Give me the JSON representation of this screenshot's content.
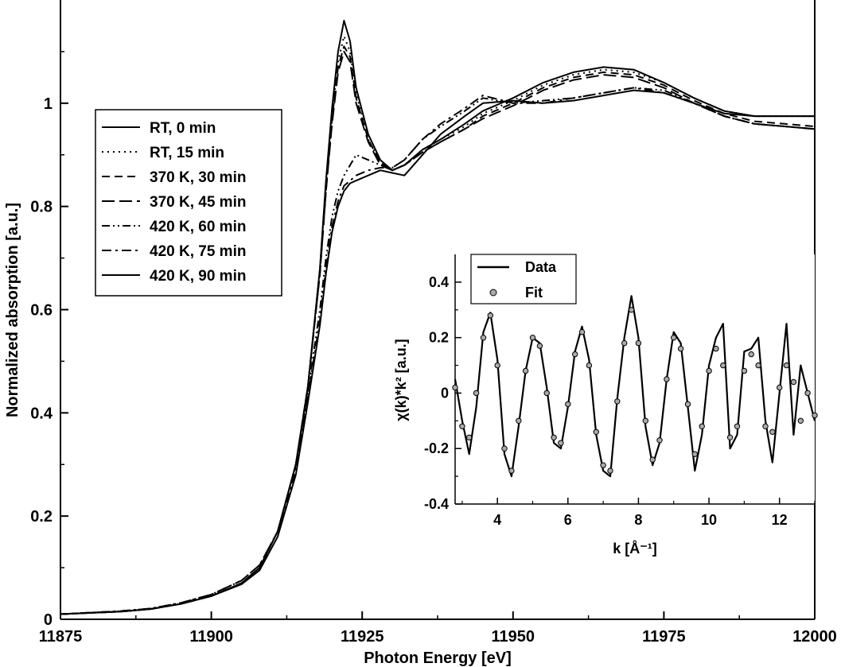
{
  "chart_data": [
    {
      "type": "line",
      "xlabel": "Photon Energy [eV]",
      "ylabel": "Normalized absorption [a.u.]",
      "xlim": [
        11875,
        12000
      ],
      "ylim": [
        0,
        1.2
      ],
      "x_ticks": [
        "11875",
        "11900",
        "11925",
        "11950",
        "11975",
        "12000"
      ],
      "y_ticks": [
        "0",
        "0.2",
        "0.4",
        "0.6",
        "0.8",
        "1"
      ],
      "grid": false,
      "legend_position": "upper-left",
      "series": [
        {
          "name": "RT, 0 min",
          "dash": "solid",
          "x": [
            11875,
            11885,
            11890,
            11895,
            11900,
            11905,
            11908,
            11911,
            11914,
            11916,
            11918,
            11919,
            11920,
            11921,
            11922,
            11923,
            11924,
            11926,
            11928,
            11930,
            11932,
            11935,
            11938,
            11942,
            11945,
            11950,
            11955,
            11960,
            11965,
            11970,
            11975,
            11980,
            11985,
            11990,
            11995,
            12000
          ],
          "y": [
            0.01,
            0.015,
            0.02,
            0.03,
            0.045,
            0.07,
            0.1,
            0.17,
            0.3,
            0.45,
            0.68,
            0.85,
            0.99,
            1.1,
            1.16,
            1.12,
            1.03,
            0.94,
            0.89,
            0.87,
            0.88,
            0.91,
            0.93,
            0.96,
            0.985,
            1.01,
            1.04,
            1.06,
            1.07,
            1.065,
            1.04,
            1.01,
            0.985,
            0.975,
            0.975,
            0.975
          ]
        },
        {
          "name": "RT, 15 min",
          "dash": "dotted",
          "x": [
            11875,
            11885,
            11890,
            11895,
            11900,
            11905,
            11908,
            11911,
            11914,
            11916,
            11918,
            11919,
            11920,
            11921,
            11922,
            11923,
            11924,
            11926,
            11928,
            11930,
            11932,
            11935,
            11938,
            11942,
            11945,
            11950,
            11955,
            11960,
            11965,
            11970,
            11975,
            11980,
            11985,
            11990,
            11995,
            12000
          ],
          "y": [
            0.01,
            0.015,
            0.02,
            0.03,
            0.045,
            0.07,
            0.1,
            0.17,
            0.3,
            0.45,
            0.68,
            0.84,
            0.98,
            1.08,
            1.13,
            1.1,
            1.02,
            0.93,
            0.885,
            0.87,
            0.88,
            0.91,
            0.93,
            0.955,
            0.98,
            1.005,
            1.035,
            1.055,
            1.065,
            1.06,
            1.04,
            1.01,
            0.985,
            0.975,
            0.975,
            0.975
          ]
        },
        {
          "name": "370 K, 30 min",
          "dash": "dashed",
          "x": [
            11875,
            11885,
            11890,
            11895,
            11900,
            11905,
            11908,
            11911,
            11914,
            11916,
            11918,
            11919,
            11920,
            11921,
            11922,
            11923,
            11924,
            11926,
            11928,
            11930,
            11932,
            11935,
            11938,
            11942,
            11945,
            11950,
            11955,
            11960,
            11965,
            11970,
            11975,
            11980,
            11985,
            11990,
            11995,
            12000
          ],
          "y": [
            0.01,
            0.015,
            0.02,
            0.03,
            0.045,
            0.07,
            0.1,
            0.17,
            0.3,
            0.45,
            0.67,
            0.83,
            0.97,
            1.07,
            1.11,
            1.09,
            1.01,
            0.93,
            0.885,
            0.87,
            0.88,
            0.905,
            0.925,
            0.95,
            0.975,
            1.0,
            1.03,
            1.05,
            1.06,
            1.055,
            1.035,
            1.005,
            0.98,
            0.965,
            0.96,
            0.955
          ]
        },
        {
          "name": "370 K, 45 min",
          "dash": "long-dash",
          "x": [
            11875,
            11885,
            11890,
            11895,
            11900,
            11905,
            11908,
            11911,
            11914,
            11916,
            11918,
            11919,
            11920,
            11921,
            11922,
            11923,
            11924,
            11926,
            11928,
            11930,
            11932,
            11935,
            11938,
            11942,
            11945,
            11950,
            11955,
            11960,
            11965,
            11970,
            11975,
            11980,
            11985,
            11990,
            11995,
            12000
          ],
          "y": [
            0.01,
            0.015,
            0.02,
            0.03,
            0.045,
            0.07,
            0.1,
            0.17,
            0.3,
            0.45,
            0.67,
            0.83,
            0.96,
            1.06,
            1.1,
            1.08,
            1.0,
            0.925,
            0.88,
            0.87,
            0.88,
            0.905,
            0.925,
            0.95,
            0.97,
            0.995,
            1.025,
            1.045,
            1.055,
            1.05,
            1.03,
            1.0,
            0.975,
            0.96,
            0.955,
            0.95
          ]
        },
        {
          "name": "420 K, 60 min",
          "dash": "dash-dot-dot",
          "x": [
            11875,
            11885,
            11890,
            11895,
            11900,
            11905,
            11908,
            11911,
            11914,
            11916,
            11918,
            11919,
            11920,
            11921,
            11922,
            11923,
            11924,
            11926,
            11928,
            11930,
            11932,
            11935,
            11938,
            11942,
            11945,
            11950,
            11955,
            11960,
            11965,
            11970,
            11975,
            11980,
            11985,
            11990,
            11995,
            12000
          ],
          "y": [
            0.01,
            0.016,
            0.021,
            0.032,
            0.048,
            0.075,
            0.105,
            0.17,
            0.3,
            0.44,
            0.6,
            0.7,
            0.78,
            0.83,
            0.86,
            0.88,
            0.9,
            0.89,
            0.88,
            0.875,
            0.89,
            0.93,
            0.955,
            0.985,
            1.01,
            1.0,
            1.005,
            1.01,
            1.02,
            1.03,
            1.025,
            1.0,
            0.975,
            0.96,
            0.955,
            0.95
          ]
        },
        {
          "name": "420 K, 75 min",
          "dash": "dash-dot",
          "x": [
            11875,
            11885,
            11890,
            11895,
            11900,
            11905,
            11908,
            11911,
            11914,
            11916,
            11918,
            11919,
            11920,
            11921,
            11922,
            11923,
            11924,
            11926,
            11928,
            11930,
            11932,
            11935,
            11938,
            11942,
            11945,
            11950,
            11955,
            11960,
            11965,
            11970,
            11975,
            11980,
            11985,
            11990,
            11995,
            12000
          ],
          "y": [
            0.01,
            0.016,
            0.021,
            0.032,
            0.048,
            0.075,
            0.105,
            0.17,
            0.29,
            0.43,
            0.58,
            0.68,
            0.76,
            0.81,
            0.84,
            0.85,
            0.86,
            0.87,
            0.875,
            0.875,
            0.89,
            0.93,
            0.96,
            0.99,
            1.015,
            1.0,
            1.0,
            1.01,
            1.02,
            1.03,
            1.02,
            1.0,
            0.975,
            0.96,
            0.955,
            0.95
          ]
        },
        {
          "name": "420 K, 90 min",
          "dash": "solid",
          "x": [
            11875,
            11885,
            11890,
            11895,
            11900,
            11905,
            11908,
            11911,
            11914,
            11916,
            11918,
            11919,
            11920,
            11921,
            11922,
            11923,
            11924,
            11926,
            11928,
            11930,
            11932,
            11935,
            11938,
            11942,
            11945,
            11950,
            11955,
            11960,
            11965,
            11970,
            11975,
            11980,
            11985,
            11990,
            11995,
            12000
          ],
          "y": [
            0.01,
            0.015,
            0.02,
            0.03,
            0.045,
            0.068,
            0.095,
            0.16,
            0.28,
            0.42,
            0.57,
            0.67,
            0.75,
            0.8,
            0.83,
            0.845,
            0.85,
            0.86,
            0.87,
            0.865,
            0.86,
            0.9,
            0.94,
            0.975,
            1.0,
            1.005,
            1.0,
            1.005,
            1.015,
            1.025,
            1.02,
            1.0,
            0.98,
            0.975,
            0.975,
            0.975
          ]
        }
      ]
    },
    {
      "type": "line",
      "xlabel": "k [Å⁻¹]",
      "ylabel": "χ(k)*k² [a.u.]",
      "xlim": [
        2.8,
        13.0
      ],
      "ylim": [
        -0.4,
        0.5
      ],
      "x_ticks": [
        "4",
        "6",
        "8",
        "10",
        "12"
      ],
      "y_ticks": [
        "-0.4",
        "-0.2",
        "0",
        "0.2",
        "0.4"
      ],
      "legend_position": "top-left",
      "series": [
        {
          "name": "Data",
          "style": "line",
          "x": [
            2.8,
            3.0,
            3.2,
            3.4,
            3.6,
            3.8,
            4.0,
            4.2,
            4.4,
            4.6,
            4.8,
            5.0,
            5.2,
            5.4,
            5.6,
            5.8,
            6.0,
            6.2,
            6.4,
            6.6,
            6.8,
            7.0,
            7.2,
            7.4,
            7.6,
            7.8,
            8.0,
            8.2,
            8.4,
            8.6,
            8.8,
            9.0,
            9.2,
            9.4,
            9.6,
            9.8,
            10.0,
            10.2,
            10.4,
            10.6,
            10.8,
            11.0,
            11.2,
            11.4,
            11.6,
            11.8,
            12.0,
            12.2,
            12.4,
            12.6,
            12.8,
            13.0
          ],
          "y": [
            0.05,
            -0.1,
            -0.22,
            -0.05,
            0.22,
            0.29,
            0.12,
            -0.22,
            -0.3,
            -0.12,
            0.08,
            0.2,
            0.18,
            0.02,
            -0.18,
            -0.2,
            -0.05,
            0.15,
            0.24,
            0.12,
            -0.15,
            -0.28,
            -0.3,
            -0.02,
            0.2,
            0.35,
            0.2,
            -0.12,
            -0.26,
            -0.18,
            0.05,
            0.22,
            0.18,
            -0.05,
            -0.28,
            -0.15,
            0.1,
            0.2,
            0.25,
            -0.2,
            -0.15,
            0.15,
            0.16,
            0.2,
            -0.1,
            -0.25,
            0.0,
            0.25,
            -0.15,
            0.1,
            0.0,
            -0.1
          ]
        },
        {
          "name": "Fit",
          "style": "markers",
          "x": [
            2.8,
            3.0,
            3.2,
            3.4,
            3.6,
            3.8,
            4.0,
            4.2,
            4.4,
            4.6,
            4.8,
            5.0,
            5.2,
            5.4,
            5.6,
            5.8,
            6.0,
            6.2,
            6.4,
            6.6,
            6.8,
            7.0,
            7.2,
            7.4,
            7.6,
            7.8,
            8.0,
            8.2,
            8.4,
            8.6,
            8.8,
            9.0,
            9.2,
            9.4,
            9.6,
            9.8,
            10.0,
            10.2,
            10.4,
            10.6,
            10.8,
            11.0,
            11.2,
            11.4,
            11.6,
            11.8,
            12.0,
            12.2,
            12.4,
            12.6,
            12.8,
            13.0
          ],
          "y": [
            0.02,
            -0.12,
            -0.16,
            0.0,
            0.2,
            0.28,
            0.1,
            -0.2,
            -0.28,
            -0.1,
            0.08,
            0.2,
            0.17,
            0.0,
            -0.16,
            -0.18,
            -0.04,
            0.14,
            0.22,
            0.1,
            -0.14,
            -0.26,
            -0.28,
            -0.03,
            0.18,
            0.3,
            0.18,
            -0.1,
            -0.24,
            -0.17,
            0.05,
            0.2,
            0.16,
            -0.04,
            -0.22,
            -0.12,
            0.08,
            0.16,
            0.1,
            -0.16,
            -0.12,
            0.08,
            0.14,
            0.1,
            -0.12,
            -0.14,
            0.02,
            0.1,
            0.04,
            -0.1,
            0.0,
            -0.08
          ]
        }
      ]
    }
  ]
}
